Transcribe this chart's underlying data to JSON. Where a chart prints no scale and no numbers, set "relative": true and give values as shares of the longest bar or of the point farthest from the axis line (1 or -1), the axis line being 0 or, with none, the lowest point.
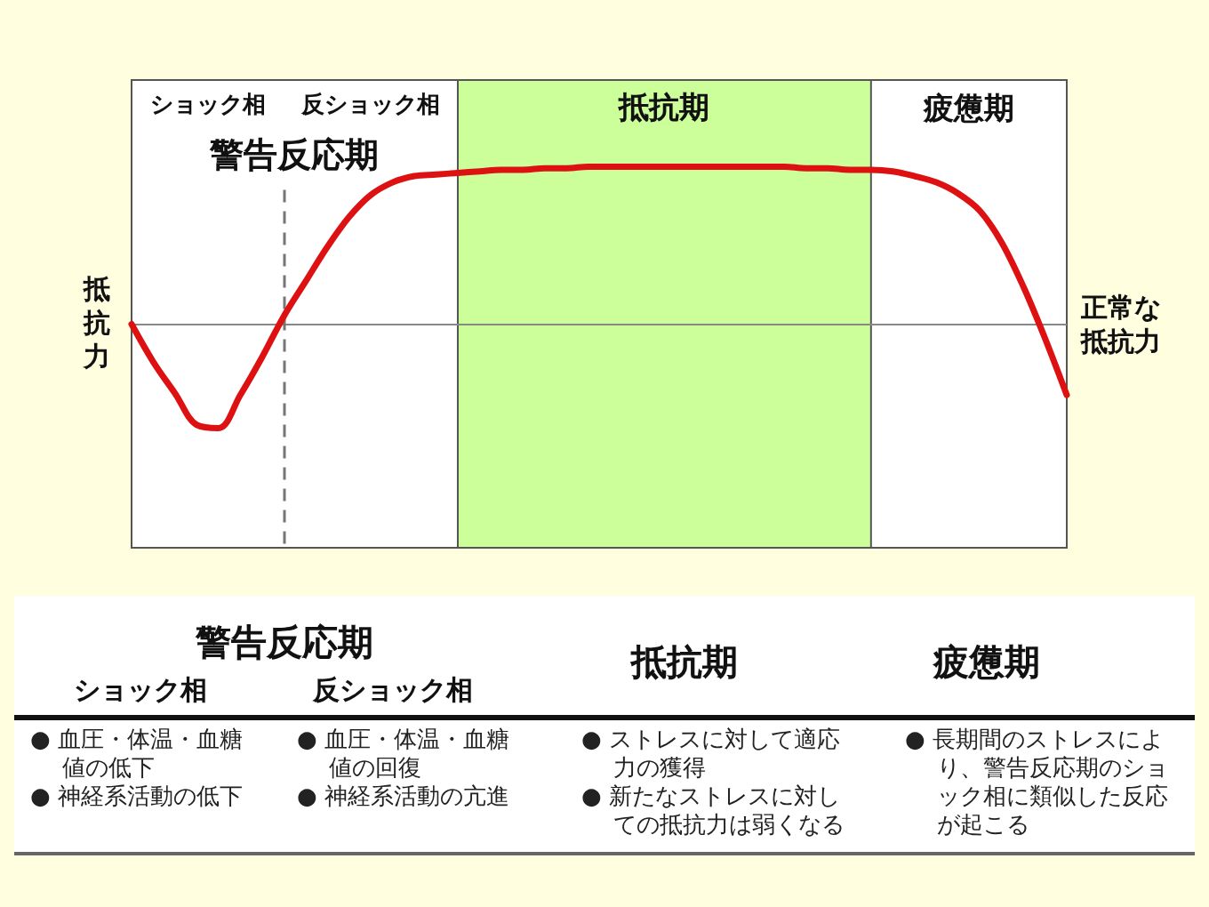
{
  "chart_data": [
    {
      "type": "line",
      "relative": true,
      "ylabel": "抵抗力",
      "categories": [
        null,
        null,
        null,
        null,
        null,
        null,
        null,
        null,
        null,
        null,
        null,
        null,
        null,
        null,
        null,
        null,
        null,
        null,
        null,
        null,
        null,
        null,
        null,
        null,
        null,
        null,
        null,
        null,
        null,
        null,
        null,
        null,
        null,
        null,
        null,
        null,
        null,
        null,
        null,
        null,
        null,
        null,
        null,
        null
      ],
      "series": [
        {
          "color": "#dd1111",
          "values": [
            0,
            -0.24,
            -0.44,
            -0.64,
            -0.66,
            -0.45,
            -0.21,
            0.05,
            0.27,
            0.49,
            0.68,
            0.82,
            0.9,
            0.94,
            0.95,
            0.96,
            0.97,
            0.98,
            0.98,
            0.99,
            0.99,
            1,
            1,
            1,
            1,
            1,
            1,
            1,
            1,
            1,
            1,
            0.99,
            0.99,
            0.98,
            0.98,
            0.97,
            0.94,
            0.9,
            0.83,
            0.72,
            0.52,
            0.24,
            -0.09,
            -0.45
          ]
        }
      ],
      "ref_lines": [
        {
          "axis": "y",
          "value": 0,
          "label": "正常な抵抗力",
          "color": "#888888"
        }
      ],
      "annotations": [
        "ショック相",
        "反ショック相",
        "抵抗期",
        "疲憊期",
        "警告反応期"
      ]
    },
    {
      "type": "other",
      "annotations": [
        "警告反応期",
        "抵抗期",
        "疲憊期",
        "ショック相",
        "反ショック相",
        "● 血圧・体温・血糖値の低下",
        "● 神経系活動の低下",
        "● 血圧・体温・血糖値の回復",
        "● 神経系活動の亢進",
        "● ストレスに対して適応力の獲得",
        "● 新たなストレスに対しての抵抗力は弱くなる",
        "● 長期間のストレスにより、警告反応期のショック相に類似した反応が起こる"
      ]
    }
  ]
}
